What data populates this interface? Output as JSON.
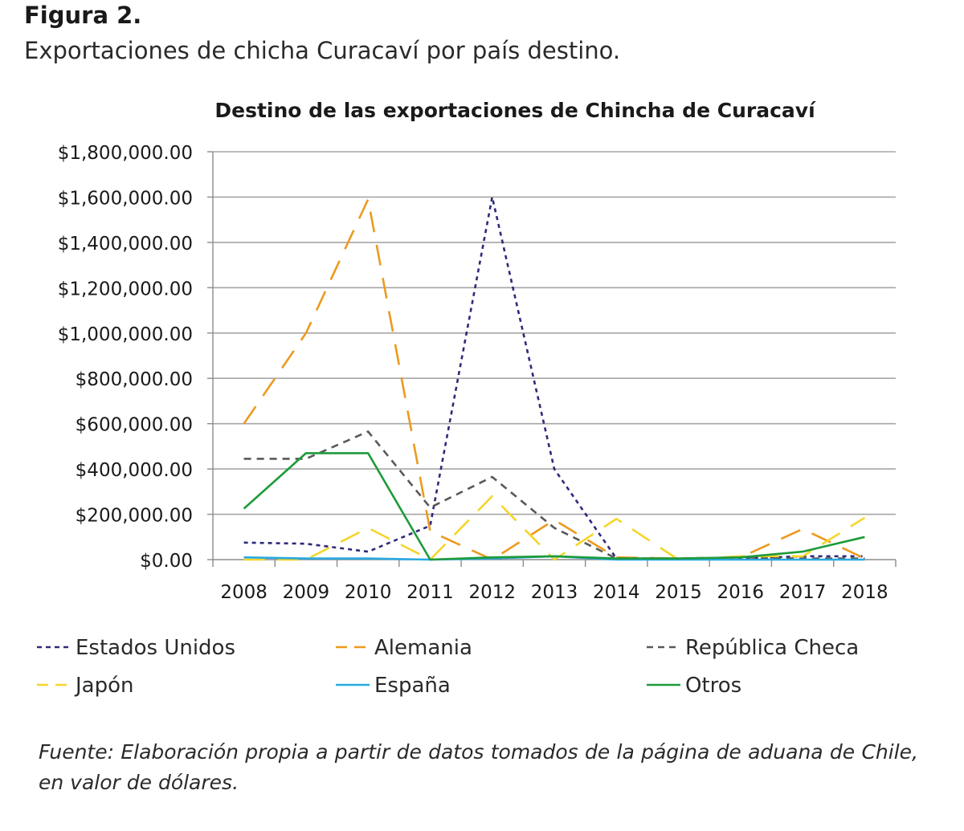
{
  "figure_label": "Figura 2.",
  "figure_caption": "Exportaciones de chicha Curacaví por país destino.",
  "source_note": "Fuente: Elaboración propia a partir de datos tomados de la página de aduana de Chile, en valor de dólares.",
  "chart_data": {
    "type": "line",
    "title": "Destino de las exportaciones de Chincha de Curacaví",
    "xlabel": "",
    "ylabel": "",
    "x": [
      "2008",
      "2009",
      "2010",
      "2011",
      "2012",
      "2013",
      "2014",
      "2015",
      "2016",
      "2017",
      "2018"
    ],
    "ylim": [
      0,
      1800000
    ],
    "yticks": [
      0,
      200000,
      400000,
      600000,
      800000,
      1000000,
      1200000,
      1400000,
      1600000,
      1800000
    ],
    "ytick_labels": [
      "$0.00",
      "$200,000.00",
      "$400,000.00",
      "$600,000.00",
      "$800,000.00",
      "$1,000,000.00",
      "$1,200,000.00",
      "$1,400,000.00",
      "$1,600,000.00",
      "$1,800,000.00"
    ],
    "grid": true,
    "legend_position": "bottom",
    "series": [
      {
        "name": "Estados Unidos",
        "color": "#2e2a7a",
        "dash": "dotted",
        "values": [
          75000,
          70000,
          35000,
          150000,
          1600000,
          400000,
          5000,
          5000,
          5000,
          15000,
          15000
        ]
      },
      {
        "name": "Alemania",
        "color": "#ec9a1e",
        "dash": "longdash",
        "values": [
          600000,
          1000000,
          1590000,
          125000,
          0,
          175000,
          10000,
          5000,
          10000,
          135000,
          5000
        ]
      },
      {
        "name": "República Checa",
        "color": "#595959",
        "dash": "dashed",
        "values": [
          445000,
          445000,
          565000,
          230000,
          365000,
          140000,
          5000,
          5000,
          10000,
          5000,
          5000
        ]
      },
      {
        "name": "Japón",
        "color": "#f5d52a",
        "dash": "longdash",
        "values": [
          0,
          0,
          140000,
          0,
          280000,
          0,
          180000,
          0,
          15000,
          15000,
          185000
        ]
      },
      {
        "name": "España",
        "color": "#29a9e1",
        "dash": "solid",
        "values": [
          10000,
          5000,
          5000,
          0,
          5000,
          15000,
          0,
          0,
          0,
          0,
          0
        ]
      },
      {
        "name": "Otros",
        "color": "#1d9b3a",
        "dash": "solid",
        "values": [
          225000,
          470000,
          470000,
          0,
          10000,
          15000,
          5000,
          5000,
          10000,
          35000,
          100000
        ]
      }
    ]
  }
}
